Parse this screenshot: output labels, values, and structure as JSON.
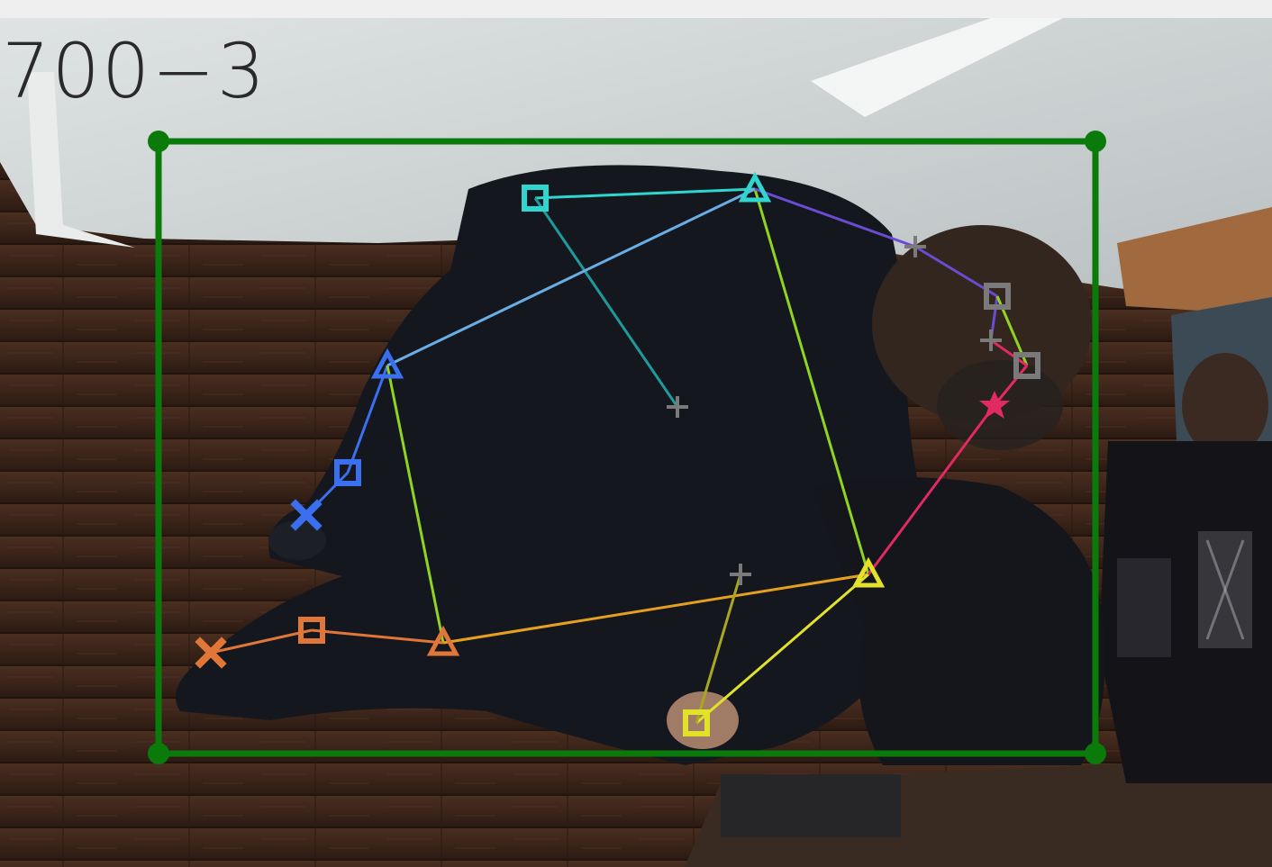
{
  "frame_label": "700−3",
  "colors": {
    "bbox": "#0a7a0a",
    "nose_to_neck": "#2ed6cf",
    "neck_to_shoulder_left": "#6aaee6",
    "left_arm": "#3a6ff0",
    "left_hand": "#3a6ff0",
    "left_leg_upper": "#8fd420",
    "left_leg_lower": "#e07638",
    "hip_line": "#e6a020",
    "right_leg": "#e2e22a",
    "right_torso": "#8fd420",
    "head_line": "#6a4bd2",
    "head_right": "#e02a60",
    "spine": "#1e9a9a",
    "inactive": "#7a7a7a"
  },
  "annotation": {
    "bounding_box": "person",
    "keypoint_markers": [
      "square",
      "triangle",
      "x-mark",
      "cross",
      "star"
    ]
  }
}
